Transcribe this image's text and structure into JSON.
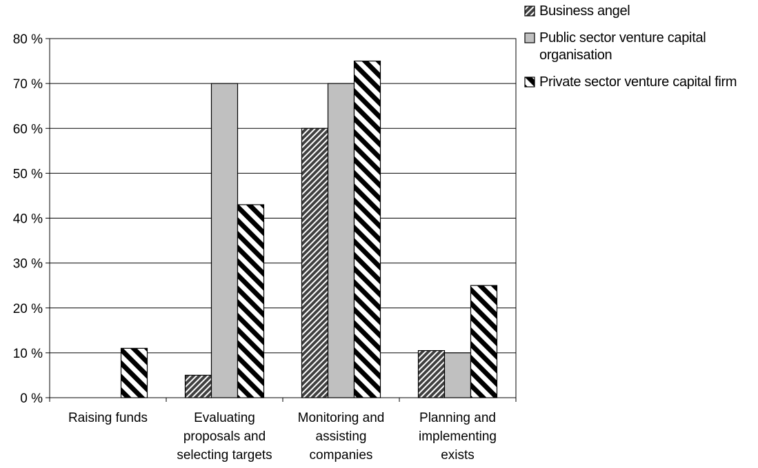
{
  "chart_data": {
    "type": "bar",
    "categories": [
      [
        "Raising funds"
      ],
      [
        "Evaluating",
        "proposals and",
        "selecting targets"
      ],
      [
        "Monitoring and",
        "assisting",
        "companies"
      ],
      [
        "Planning and",
        "implementing",
        "exists"
      ]
    ],
    "series": [
      {
        "name": "Business angel",
        "values": [
          0,
          5,
          60,
          10.5
        ],
        "pattern": "dense-diagonal",
        "color": "#404040"
      },
      {
        "name": "Public sector venture capital organisation",
        "values": [
          0,
          70,
          70,
          10
        ],
        "pattern": "solid",
        "color": "#c0c0c0"
      },
      {
        "name": "Private sector venture capital firm",
        "values": [
          11,
          43,
          75,
          25
        ],
        "pattern": "wide-stripe",
        "color": "#000000"
      }
    ],
    "ylim": [
      0,
      80
    ],
    "yticks": [
      "0 %",
      "10 %",
      "20 %",
      "30 %",
      "40 %",
      "50 %",
      "60 %",
      "70 %",
      "80 %"
    ],
    "xlabel": "",
    "ylabel": "",
    "grid": true,
    "legend_position": "top-right"
  }
}
